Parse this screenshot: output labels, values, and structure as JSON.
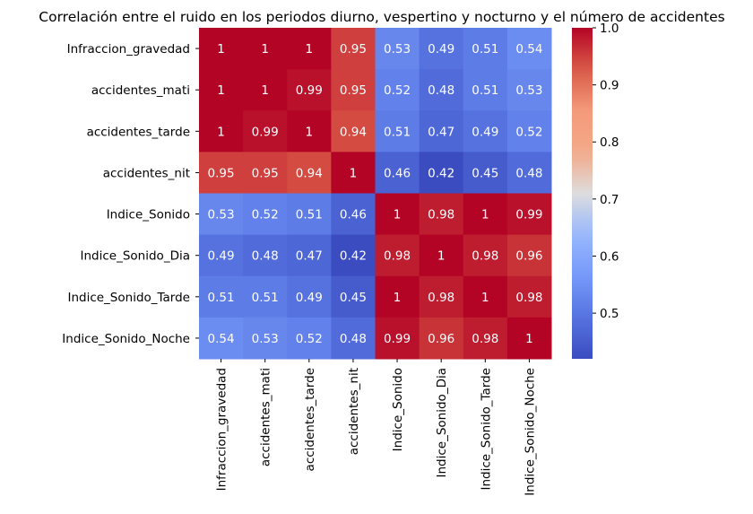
{
  "chart_data": {
    "type": "heatmap",
    "title": "Correlación entre el ruido en los periodos diurno, vespertino y nocturno y el número de accidentes",
    "rows": [
      "Infraccion_gravedad",
      "accidentes_mati",
      "accidentes_tarde",
      "accidentes_nit",
      "Indice_Sonido",
      "Indice_Sonido_Dia",
      "Indice_Sonido_Tarde",
      "Indice_Sonido_Noche"
    ],
    "columns": [
      "Infraccion_gravedad",
      "accidentes_mati",
      "accidentes_tarde",
      "accidentes_nit",
      "Indice_Sonido",
      "Indice_Sonido_Dia",
      "Indice_Sonido_Tarde",
      "Indice_Sonido_Noche"
    ],
    "values": [
      [
        1,
        1,
        1,
        0.95,
        0.53,
        0.49,
        0.51,
        0.54
      ],
      [
        1,
        1,
        0.99,
        0.95,
        0.52,
        0.48,
        0.51,
        0.53
      ],
      [
        1,
        0.99,
        1,
        0.94,
        0.51,
        0.47,
        0.49,
        0.52
      ],
      [
        0.95,
        0.95,
        0.94,
        1,
        0.46,
        0.42,
        0.45,
        0.48
      ],
      [
        0.53,
        0.52,
        0.51,
        0.46,
        1,
        0.98,
        1,
        0.99
      ],
      [
        0.49,
        0.48,
        0.47,
        0.42,
        0.98,
        1,
        0.98,
        0.96
      ],
      [
        0.51,
        0.51,
        0.49,
        0.45,
        1,
        0.98,
        1,
        0.98
      ],
      [
        0.54,
        0.53,
        0.52,
        0.48,
        0.99,
        0.96,
        0.98,
        1
      ]
    ],
    "colormap": "coolwarm",
    "value_range": [
      0.42,
      1.0
    ],
    "colorbar_ticks": [
      "0.5",
      "0.6",
      "0.7",
      "0.8",
      "0.9",
      "1.0"
    ],
    "annotations": true
  }
}
